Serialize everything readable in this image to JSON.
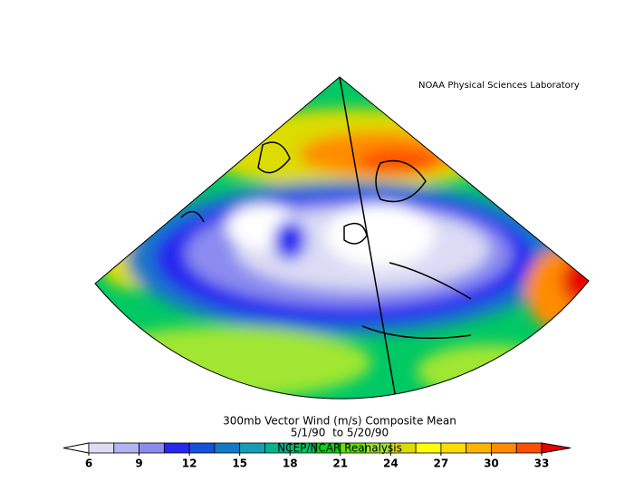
{
  "credit": "NOAA Physical Sciences Laboratory",
  "title": "300mb Vector Wind (m/s) Composite Mean",
  "dates": "5/1/90  to 5/20/90",
  "source": "NCEP/NCAR Reanalysis",
  "colorbar": {
    "ticks": [
      6,
      9,
      12,
      15,
      18,
      21,
      24,
      27,
      30,
      33
    ],
    "colors": [
      "#ffffff",
      "#dcdcf5",
      "#b4b4f0",
      "#8c8cf0",
      "#2828f0",
      "#1450dc",
      "#1478c8",
      "#14a0b4",
      "#00b48c",
      "#00c864",
      "#00dc00",
      "#64e600",
      "#a0e632",
      "#dcdc00",
      "#ffff00",
      "#ffdc00",
      "#ffb400",
      "#ff8c00",
      "#ff5000",
      "#e80000"
    ]
  }
}
